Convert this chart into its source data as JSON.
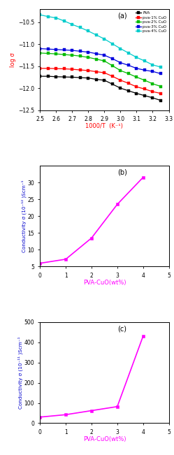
{
  "panel_a": {
    "title": "(a)",
    "xlabel": "1000/T  (K⁻¹)",
    "ylabel": "log σ",
    "xlim": [
      2.5,
      3.3
    ],
    "ylim": [
      -12.5,
      -10.2
    ],
    "yticks": [
      -12.5,
      -12.0,
      -11.5,
      -11.0,
      -10.5
    ],
    "xticks": [
      2.5,
      2.6,
      2.7,
      2.8,
      2.9,
      3.0,
      3.1,
      3.2,
      3.3
    ],
    "series": [
      {
        "label": "PVA",
        "color": "#000000",
        "x": [
          2.5,
          2.55,
          2.6,
          2.65,
          2.7,
          2.75,
          2.8,
          2.85,
          2.9,
          2.95,
          3.0,
          3.05,
          3.1,
          3.15,
          3.2,
          3.25
        ],
        "y": [
          -11.73,
          -11.73,
          -11.74,
          -11.745,
          -11.75,
          -11.76,
          -11.77,
          -11.8,
          -11.82,
          -11.91,
          -12.0,
          -12.06,
          -12.12,
          -12.17,
          -12.22,
          -12.28
        ]
      },
      {
        "label": "pva-1% CuO",
        "color": "#ff0000",
        "x": [
          2.5,
          2.55,
          2.6,
          2.65,
          2.7,
          2.75,
          2.8,
          2.85,
          2.9,
          2.95,
          3.0,
          3.05,
          3.1,
          3.15,
          3.2,
          3.25
        ],
        "y": [
          -11.55,
          -11.55,
          -11.555,
          -11.56,
          -11.57,
          -11.585,
          -11.6,
          -11.625,
          -11.65,
          -11.73,
          -11.82,
          -11.89,
          -11.97,
          -12.02,
          -12.08,
          -12.12
        ]
      },
      {
        "label": "pva-2% CuO",
        "color": "#00bb00",
        "x": [
          2.5,
          2.55,
          2.6,
          2.65,
          2.7,
          2.75,
          2.8,
          2.85,
          2.9,
          2.95,
          3.0,
          3.05,
          3.1,
          3.15,
          3.2,
          3.25
        ],
        "y": [
          -11.2,
          -11.21,
          -11.22,
          -11.235,
          -11.25,
          -11.27,
          -11.3,
          -11.34,
          -11.38,
          -11.49,
          -11.6,
          -11.67,
          -11.75,
          -11.82,
          -11.9,
          -11.96
        ]
      },
      {
        "label": "pva-3% CuO",
        "color": "#0000dd",
        "x": [
          2.5,
          2.55,
          2.6,
          2.65,
          2.7,
          2.75,
          2.8,
          2.85,
          2.9,
          2.95,
          3.0,
          3.05,
          3.1,
          3.15,
          3.2,
          3.25
        ],
        "y": [
          -11.1,
          -11.11,
          -11.12,
          -11.13,
          -11.14,
          -11.16,
          -11.18,
          -11.215,
          -11.25,
          -11.33,
          -11.42,
          -11.48,
          -11.55,
          -11.59,
          -11.62,
          -11.67
        ]
      },
      {
        "label": "pva-4% CuO",
        "color": "#00cccc",
        "x": [
          2.5,
          2.55,
          2.6,
          2.65,
          2.7,
          2.75,
          2.8,
          2.85,
          2.9,
          2.95,
          3.0,
          3.05,
          3.1,
          3.15,
          3.2,
          3.25
        ],
        "y": [
          -10.33,
          -10.37,
          -10.4,
          -10.47,
          -10.55,
          -10.62,
          -10.7,
          -10.79,
          -10.88,
          -10.99,
          -11.1,
          -11.2,
          -11.3,
          -11.38,
          -11.47,
          -11.52
        ]
      }
    ]
  },
  "panel_b": {
    "title": "(b)",
    "xlabel": "PVA-CuO(wt%)",
    "ylabel": "Conductivity σ (10⁻¹² )Scm⁻¹",
    "xlim": [
      0,
      5
    ],
    "ylim": [
      5,
      35
    ],
    "xticks": [
      0,
      1,
      2,
      3,
      4,
      5
    ],
    "yticks": [
      5,
      10,
      15,
      20,
      25,
      30
    ],
    "x": [
      0,
      1,
      2,
      3,
      4
    ],
    "y": [
      6.0,
      7.2,
      13.5,
      23.5,
      31.5
    ],
    "color": "#ff00ff"
  },
  "panel_c": {
    "title": "(c)",
    "xlabel": "PVA-CuO(wt%)",
    "ylabel": "Conductivity σ (10⁻¹¹ )Scm⁻¹",
    "xlim": [
      0,
      5
    ],
    "ylim": [
      0,
      500
    ],
    "xticks": [
      0,
      1,
      2,
      3,
      4,
      5
    ],
    "yticks": [
      0,
      100,
      200,
      300,
      400,
      500
    ],
    "x": [
      0,
      1,
      2,
      3,
      4
    ],
    "y": [
      30,
      42,
      62,
      82,
      430
    ],
    "color": "#ff00ff"
  },
  "xlabel_color_a": "#ff0000",
  "ylabel_color_a": "#ff0000",
  "ylabel_color_bc": "#0000cc",
  "xlabel_color_bc": "#ff00ff"
}
